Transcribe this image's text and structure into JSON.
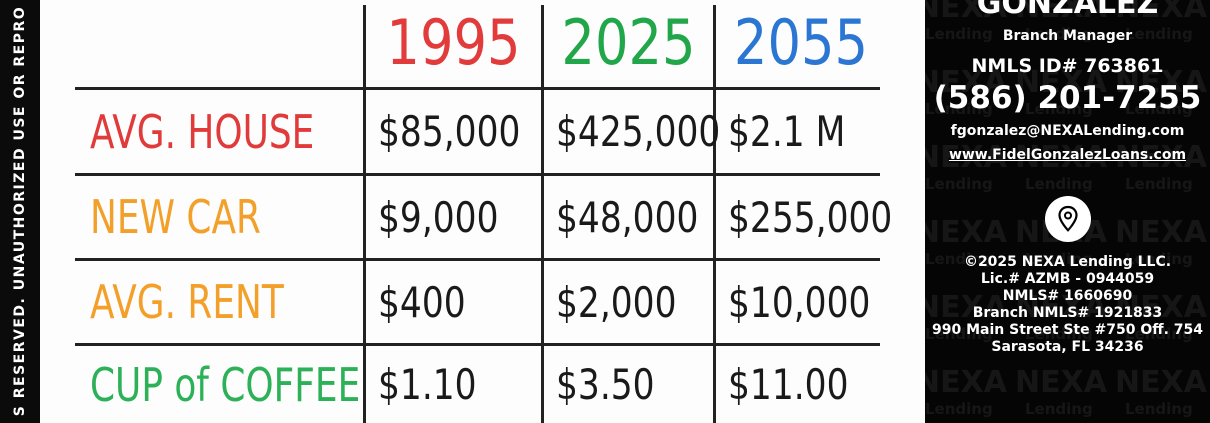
{
  "strip_text": "S RESERVED. UNAUTHORIZED USE OR REPRO",
  "table": {
    "headers": [
      "1995",
      "2025",
      "2055"
    ],
    "rows": [
      {
        "label": "AVG. HOUSE",
        "values": [
          "$85,000",
          "$425,000",
          "$2.1 M"
        ]
      },
      {
        "label": "NEW CAR",
        "values": [
          "$9,000",
          "$48,000",
          "$255,000"
        ]
      },
      {
        "label": "AVG. RENT",
        "values": [
          "$400",
          "$2,000",
          "$10,000"
        ]
      },
      {
        "label": "CUP of COFFEE",
        "values": [
          "$1.10",
          "$3.50",
          "$11.00"
        ]
      }
    ]
  },
  "sidebar": {
    "name": "GONZALEZ",
    "role": "Branch Manager",
    "nmls": "NMLS ID# 763861",
    "phone": "(586) 201-7255",
    "email": "fgonzalez@NEXALending.com",
    "website": "www.FidelGonzalezLoans.com",
    "footer": [
      "©2025 NEXA Lending LLC.",
      "Lic.# AZMB - 0944059",
      "NMLS# 1660690",
      "Branch NMLS# 1921833",
      "990 Main Street Ste #750 Off. 754",
      "Sarasota, FL 34236"
    ],
    "watermark": [
      "NEXA",
      "Lending"
    ]
  }
}
